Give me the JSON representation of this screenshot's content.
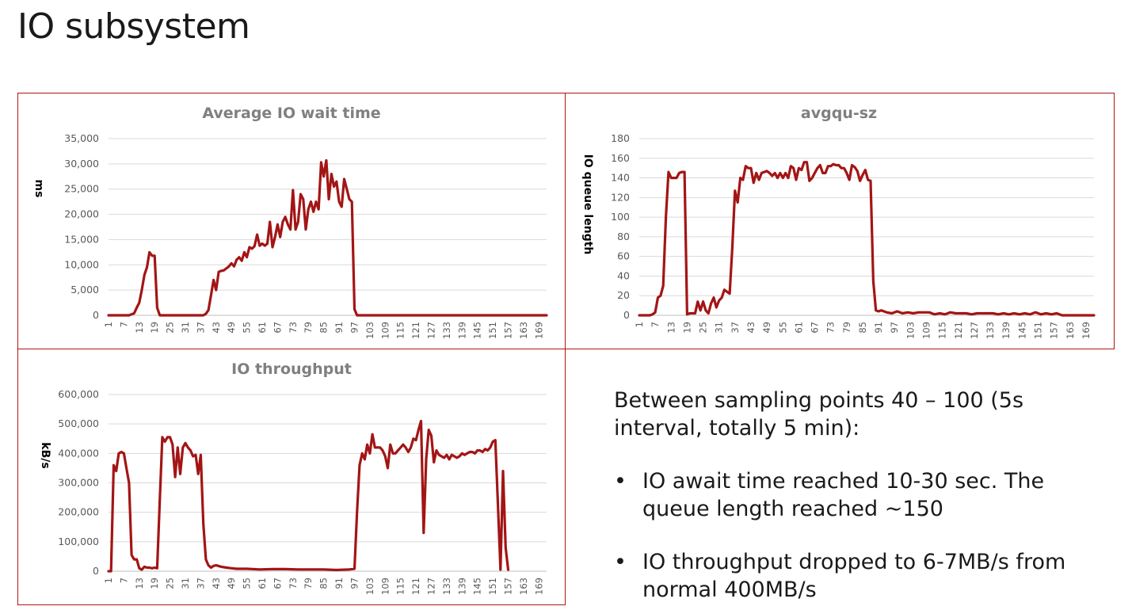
{
  "page": {
    "title": "IO subsystem"
  },
  "notes": {
    "intro": "Between sampling points 40 – 100 (5s interval, totally 5 min):",
    "bullet_char": "•",
    "bullets": [
      "IO await time reached 10-30 sec. The queue length reached ~150",
      "IO throughput dropped to 6-7MB/s from normal 400MB/s"
    ]
  },
  "colors": {
    "series": "#a31515",
    "grid": "#d9d9d9",
    "axis_text": "#595959",
    "title_text": "#7f7f7f",
    "panel_border": "#b01515"
  },
  "chart_data": [
    {
      "type": "line",
      "title": "Average IO wait time",
      "ylabel": "ms",
      "xlabel": "",
      "ylim": [
        0,
        35000
      ],
      "yticks": [
        "0",
        "5,000",
        "10,000",
        "15,000",
        "20,000",
        "25,000",
        "30,000",
        "35,000"
      ],
      "xticks": [
        "1",
        "7",
        "13",
        "19",
        "25",
        "31",
        "37",
        "43",
        "49",
        "55",
        "61",
        "67",
        "73",
        "79",
        "85",
        "91",
        "97",
        "103",
        "109",
        "115",
        "121",
        "127",
        "133",
        "139",
        "145",
        "151",
        "157",
        "163",
        "169"
      ],
      "x_range": [
        1,
        172
      ],
      "grid": true,
      "points": [
        [
          1,
          0
        ],
        [
          9,
          0
        ],
        [
          10,
          200
        ],
        [
          11,
          400
        ],
        [
          12,
          1500
        ],
        [
          13,
          2500
        ],
        [
          14,
          5000
        ],
        [
          15,
          8000
        ],
        [
          16,
          9500
        ],
        [
          17,
          12500
        ],
        [
          18,
          11800
        ],
        [
          19,
          11800
        ],
        [
          20,
          1500
        ],
        [
          21,
          0
        ],
        [
          38,
          0
        ],
        [
          39,
          300
        ],
        [
          40,
          1000
        ],
        [
          41,
          4000
        ],
        [
          42,
          7000
        ],
        [
          43,
          5000
        ],
        [
          44,
          8600
        ],
        [
          45,
          8800
        ],
        [
          46,
          8900
        ],
        [
          47,
          9300
        ],
        [
          48,
          9700
        ],
        [
          49,
          10300
        ],
        [
          50,
          9700
        ],
        [
          51,
          11000
        ],
        [
          52,
          11500
        ],
        [
          53,
          10800
        ],
        [
          54,
          12500
        ],
        [
          55,
          11500
        ],
        [
          56,
          13500
        ],
        [
          57,
          13200
        ],
        [
          58,
          13700
        ],
        [
          59,
          16000
        ],
        [
          60,
          13800
        ],
        [
          61,
          14200
        ],
        [
          62,
          13800
        ],
        [
          63,
          14200
        ],
        [
          64,
          18500
        ],
        [
          65,
          13500
        ],
        [
          66,
          15500
        ],
        [
          67,
          18000
        ],
        [
          68,
          15500
        ],
        [
          69,
          18500
        ],
        [
          70,
          19500
        ],
        [
          71,
          18000
        ],
        [
          72,
          17000
        ],
        [
          73,
          24800
        ],
        [
          74,
          17000
        ],
        [
          75,
          18500
        ],
        [
          76,
          24000
        ],
        [
          77,
          23000
        ],
        [
          78,
          17000
        ],
        [
          79,
          21000
        ],
        [
          80,
          22500
        ],
        [
          81,
          20500
        ],
        [
          82,
          22500
        ],
        [
          83,
          21000
        ],
        [
          84,
          30300
        ],
        [
          85,
          27500
        ],
        [
          86,
          30700
        ],
        [
          87,
          23000
        ],
        [
          88,
          28000
        ],
        [
          89,
          25500
        ],
        [
          90,
          26500
        ],
        [
          91,
          22500
        ],
        [
          92,
          21500
        ],
        [
          93,
          27000
        ],
        [
          94,
          25000
        ],
        [
          95,
          23000
        ],
        [
          96,
          22500
        ],
        [
          97,
          1200
        ],
        [
          98,
          0
        ],
        [
          172,
          0
        ]
      ]
    },
    {
      "type": "line",
      "title": "avgqu-sz",
      "ylabel": "IO queue length",
      "xlabel": "",
      "ylim": [
        0,
        180
      ],
      "yticks": [
        "0",
        "20",
        "40",
        "60",
        "80",
        "100",
        "120",
        "140",
        "160",
        "180"
      ],
      "xticks": [
        "1",
        "7",
        "13",
        "19",
        "25",
        "31",
        "37",
        "43",
        "49",
        "55",
        "61",
        "67",
        "73",
        "79",
        "85",
        "91",
        "97",
        "103",
        "109",
        "115",
        "121",
        "127",
        "133",
        "139",
        "145",
        "151",
        "157",
        "163",
        "169"
      ],
      "x_range": [
        1,
        172
      ],
      "grid": true,
      "points": [
        [
          1,
          0
        ],
        [
          5,
          0
        ],
        [
          6,
          1
        ],
        [
          7,
          3
        ],
        [
          8,
          18
        ],
        [
          9,
          20
        ],
        [
          10,
          30
        ],
        [
          11,
          100
        ],
        [
          12,
          146
        ],
        [
          13,
          140
        ],
        [
          14,
          140
        ],
        [
          15,
          140
        ],
        [
          16,
          145
        ],
        [
          17,
          146
        ],
        [
          18,
          146
        ],
        [
          19,
          1
        ],
        [
          20,
          2
        ],
        [
          21,
          2
        ],
        [
          22,
          2
        ],
        [
          23,
          14
        ],
        [
          24,
          5
        ],
        [
          25,
          14
        ],
        [
          26,
          5
        ],
        [
          27,
          2
        ],
        [
          28,
          12
        ],
        [
          29,
          18
        ],
        [
          30,
          8
        ],
        [
          31,
          15
        ],
        [
          32,
          18
        ],
        [
          33,
          26
        ],
        [
          34,
          24
        ],
        [
          35,
          22
        ],
        [
          36,
          70
        ],
        [
          37,
          127
        ],
        [
          38,
          115
        ],
        [
          39,
          140
        ],
        [
          40,
          138
        ],
        [
          41,
          152
        ],
        [
          42,
          150
        ],
        [
          43,
          150
        ],
        [
          44,
          135
        ],
        [
          45,
          145
        ],
        [
          46,
          138
        ],
        [
          47,
          145
        ],
        [
          48,
          146
        ],
        [
          49,
          147
        ],
        [
          50,
          145
        ],
        [
          51,
          142
        ],
        [
          52,
          145
        ],
        [
          53,
          140
        ],
        [
          54,
          145
        ],
        [
          55,
          140
        ],
        [
          56,
          145
        ],
        [
          57,
          140
        ],
        [
          58,
          152
        ],
        [
          59,
          150
        ],
        [
          60,
          138
        ],
        [
          61,
          150
        ],
        [
          62,
          148
        ],
        [
          63,
          156
        ],
        [
          64,
          156
        ],
        [
          65,
          137
        ],
        [
          66,
          140
        ],
        [
          67,
          145
        ],
        [
          68,
          150
        ],
        [
          69,
          153
        ],
        [
          70,
          145
        ],
        [
          71,
          145
        ],
        [
          72,
          152
        ],
        [
          73,
          152
        ],
        [
          74,
          154
        ],
        [
          75,
          153
        ],
        [
          76,
          153
        ],
        [
          77,
          150
        ],
        [
          78,
          150
        ],
        [
          79,
          145
        ],
        [
          80,
          138
        ],
        [
          81,
          153
        ],
        [
          82,
          151
        ],
        [
          83,
          147
        ],
        [
          84,
          137
        ],
        [
          85,
          143
        ],
        [
          86,
          148
        ],
        [
          87,
          138
        ],
        [
          88,
          137
        ],
        [
          89,
          35
        ],
        [
          90,
          5
        ],
        [
          91,
          4
        ],
        [
          92,
          5
        ],
        [
          94,
          3
        ],
        [
          96,
          2
        ],
        [
          98,
          4
        ],
        [
          100,
          2
        ],
        [
          102,
          3
        ],
        [
          104,
          2
        ],
        [
          106,
          3
        ],
        [
          110,
          3
        ],
        [
          112,
          1
        ],
        [
          114,
          2
        ],
        [
          116,
          1
        ],
        [
          118,
          3
        ],
        [
          120,
          2
        ],
        [
          124,
          2
        ],
        [
          126,
          1
        ],
        [
          128,
          2
        ],
        [
          130,
          2
        ],
        [
          134,
          2
        ],
        [
          136,
          1
        ],
        [
          138,
          2
        ],
        [
          140,
          1
        ],
        [
          142,
          2
        ],
        [
          144,
          1
        ],
        [
          146,
          2
        ],
        [
          148,
          1
        ],
        [
          150,
          3
        ],
        [
          152,
          1
        ],
        [
          154,
          2
        ],
        [
          156,
          1
        ],
        [
          158,
          2
        ],
        [
          160,
          0
        ],
        [
          172,
          0
        ]
      ]
    },
    {
      "type": "line",
      "title": "IO throughput",
      "ylabel": "kB/s",
      "xlabel": "",
      "ylim": [
        0,
        600000
      ],
      "yticks": [
        "0",
        "100,000",
        "200,000",
        "300,000",
        "400,000",
        "500,000",
        "600,000"
      ],
      "xticks": [
        "1",
        "7",
        "13",
        "19",
        "25",
        "31",
        "37",
        "43",
        "49",
        "55",
        "61",
        "67",
        "73",
        "79",
        "85",
        "91",
        "97",
        "103",
        "109",
        "115",
        "121",
        "127",
        "133",
        "139",
        "145",
        "151",
        "157",
        "163",
        "169"
      ],
      "x_range": [
        1,
        172
      ],
      "grid": true,
      "points": [
        [
          1,
          0
        ],
        [
          2,
          0
        ],
        [
          3,
          360000
        ],
        [
          4,
          340000
        ],
        [
          5,
          400000
        ],
        [
          6,
          405000
        ],
        [
          7,
          400000
        ],
        [
          8,
          350000
        ],
        [
          9,
          300000
        ],
        [
          10,
          55000
        ],
        [
          11,
          40000
        ],
        [
          12,
          40000
        ],
        [
          13,
          10000
        ],
        [
          14,
          5000
        ],
        [
          15,
          15000
        ],
        [
          16,
          12000
        ],
        [
          17,
          12000
        ],
        [
          18,
          10000
        ],
        [
          19,
          12000
        ],
        [
          20,
          10000
        ],
        [
          21,
          240000
        ],
        [
          22,
          455000
        ],
        [
          23,
          440000
        ],
        [
          24,
          455000
        ],
        [
          25,
          455000
        ],
        [
          26,
          430000
        ],
        [
          27,
          320000
        ],
        [
          28,
          420000
        ],
        [
          29,
          330000
        ],
        [
          30,
          420000
        ],
        [
          31,
          435000
        ],
        [
          32,
          420000
        ],
        [
          33,
          410000
        ],
        [
          34,
          390000
        ],
        [
          35,
          395000
        ],
        [
          36,
          330000
        ],
        [
          37,
          395000
        ],
        [
          38,
          160000
        ],
        [
          39,
          40000
        ],
        [
          40,
          20000
        ],
        [
          41,
          12000
        ],
        [
          42,
          18000
        ],
        [
          43,
          20000
        ],
        [
          45,
          15000
        ],
        [
          47,
          12000
        ],
        [
          49,
          10000
        ],
        [
          51,
          8000
        ],
        [
          55,
          8000
        ],
        [
          60,
          6000
        ],
        [
          65,
          7000
        ],
        [
          70,
          7000
        ],
        [
          75,
          6000
        ],
        [
          80,
          6000
        ],
        [
          85,
          6000
        ],
        [
          90,
          4000
        ],
        [
          95,
          6000
        ],
        [
          97,
          8000
        ],
        [
          98,
          200000
        ],
        [
          99,
          360000
        ],
        [
          100,
          400000
        ],
        [
          101,
          380000
        ],
        [
          102,
          430000
        ],
        [
          103,
          400000
        ],
        [
          104,
          465000
        ],
        [
          105,
          420000
        ],
        [
          106,
          420000
        ],
        [
          107,
          420000
        ],
        [
          108,
          410000
        ],
        [
          109,
          390000
        ],
        [
          110,
          350000
        ],
        [
          111,
          430000
        ],
        [
          112,
          400000
        ],
        [
          113,
          400000
        ],
        [
          114,
          410000
        ],
        [
          115,
          420000
        ],
        [
          116,
          430000
        ],
        [
          117,
          420000
        ],
        [
          118,
          405000
        ],
        [
          119,
          420000
        ],
        [
          120,
          450000
        ],
        [
          121,
          445000
        ],
        [
          122,
          480000
        ],
        [
          123,
          510000
        ],
        [
          124,
          130000
        ],
        [
          125,
          380000
        ],
        [
          126,
          480000
        ],
        [
          127,
          460000
        ],
        [
          128,
          370000
        ],
        [
          129,
          410000
        ],
        [
          130,
          395000
        ],
        [
          131,
          390000
        ],
        [
          132,
          385000
        ],
        [
          133,
          395000
        ],
        [
          134,
          380000
        ],
        [
          135,
          395000
        ],
        [
          136,
          390000
        ],
        [
          137,
          385000
        ],
        [
          138,
          390000
        ],
        [
          139,
          400000
        ],
        [
          140,
          395000
        ],
        [
          141,
          400000
        ],
        [
          142,
          405000
        ],
        [
          143,
          405000
        ],
        [
          144,
          400000
        ],
        [
          145,
          410000
        ],
        [
          146,
          410000
        ],
        [
          147,
          405000
        ],
        [
          148,
          415000
        ],
        [
          149,
          410000
        ],
        [
          150,
          420000
        ],
        [
          151,
          440000
        ],
        [
          152,
          445000
        ],
        [
          153,
          225000
        ],
        [
          154,
          5000
        ],
        [
          155,
          340000
        ],
        [
          156,
          80000
        ],
        [
          157,
          5000
        ]
      ]
    }
  ]
}
